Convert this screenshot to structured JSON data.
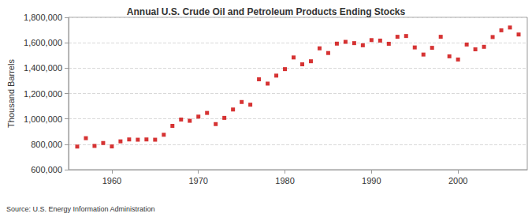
{
  "chart_data": {
    "type": "scatter",
    "title": "Annual U.S. Crude Oil and Petroleum Products Ending Stocks",
    "y_label": "Thousand Barrels",
    "annotations": [
      "Source: U.S. Energy Information Administration"
    ],
    "x": [
      1956,
      1957,
      1958,
      1959,
      1960,
      1961,
      1962,
      1963,
      1964,
      1965,
      1966,
      1967,
      1968,
      1969,
      1970,
      1971,
      1972,
      1973,
      1974,
      1975,
      1976,
      1977,
      1978,
      1979,
      1980,
      1981,
      1982,
      1983,
      1984,
      1985,
      1986,
      1987,
      1988,
      1989,
      1990,
      1991,
      1992,
      1993,
      1994,
      1995,
      1996,
      1997,
      1998,
      1999,
      2000,
      2001,
      2002,
      2003,
      2004,
      2005,
      2006,
      2007
    ],
    "values": [
      782000,
      848000,
      787000,
      810000,
      783000,
      823000,
      838000,
      836000,
      838000,
      836000,
      875000,
      945000,
      995000,
      985000,
      1018000,
      1047000,
      959000,
      1008000,
      1074000,
      1133000,
      1112000,
      1312000,
      1278000,
      1341000,
      1392000,
      1484000,
      1430000,
      1454000,
      1556000,
      1519000,
      1593000,
      1607000,
      1597000,
      1580000,
      1621000,
      1617000,
      1592000,
      1647000,
      1653000,
      1563000,
      1507000,
      1560000,
      1647000,
      1493000,
      1468000,
      1586000,
      1548000,
      1568000,
      1645000,
      1698000,
      1720000,
      1665000
    ],
    "color": "#cc0000",
    "marker": "square",
    "xlim": [
      1955,
      2008
    ],
    "xticks": [
      1960,
      1970,
      1980,
      1990,
      2000
    ],
    "ylim": [
      600000,
      1800000
    ],
    "yticks": [
      {
        "value": 600000,
        "label": "600,000"
      },
      {
        "value": 800000,
        "label": "800,000"
      },
      {
        "value": 1000000,
        "label": "1,000,000"
      },
      {
        "value": 1200000,
        "label": "1,200,000"
      },
      {
        "value": 1400000,
        "label": "1,400,000"
      },
      {
        "value": 1600000,
        "label": "1,600,000"
      },
      {
        "value": 1800000,
        "label": "1,800,000"
      }
    ],
    "grid": true
  }
}
